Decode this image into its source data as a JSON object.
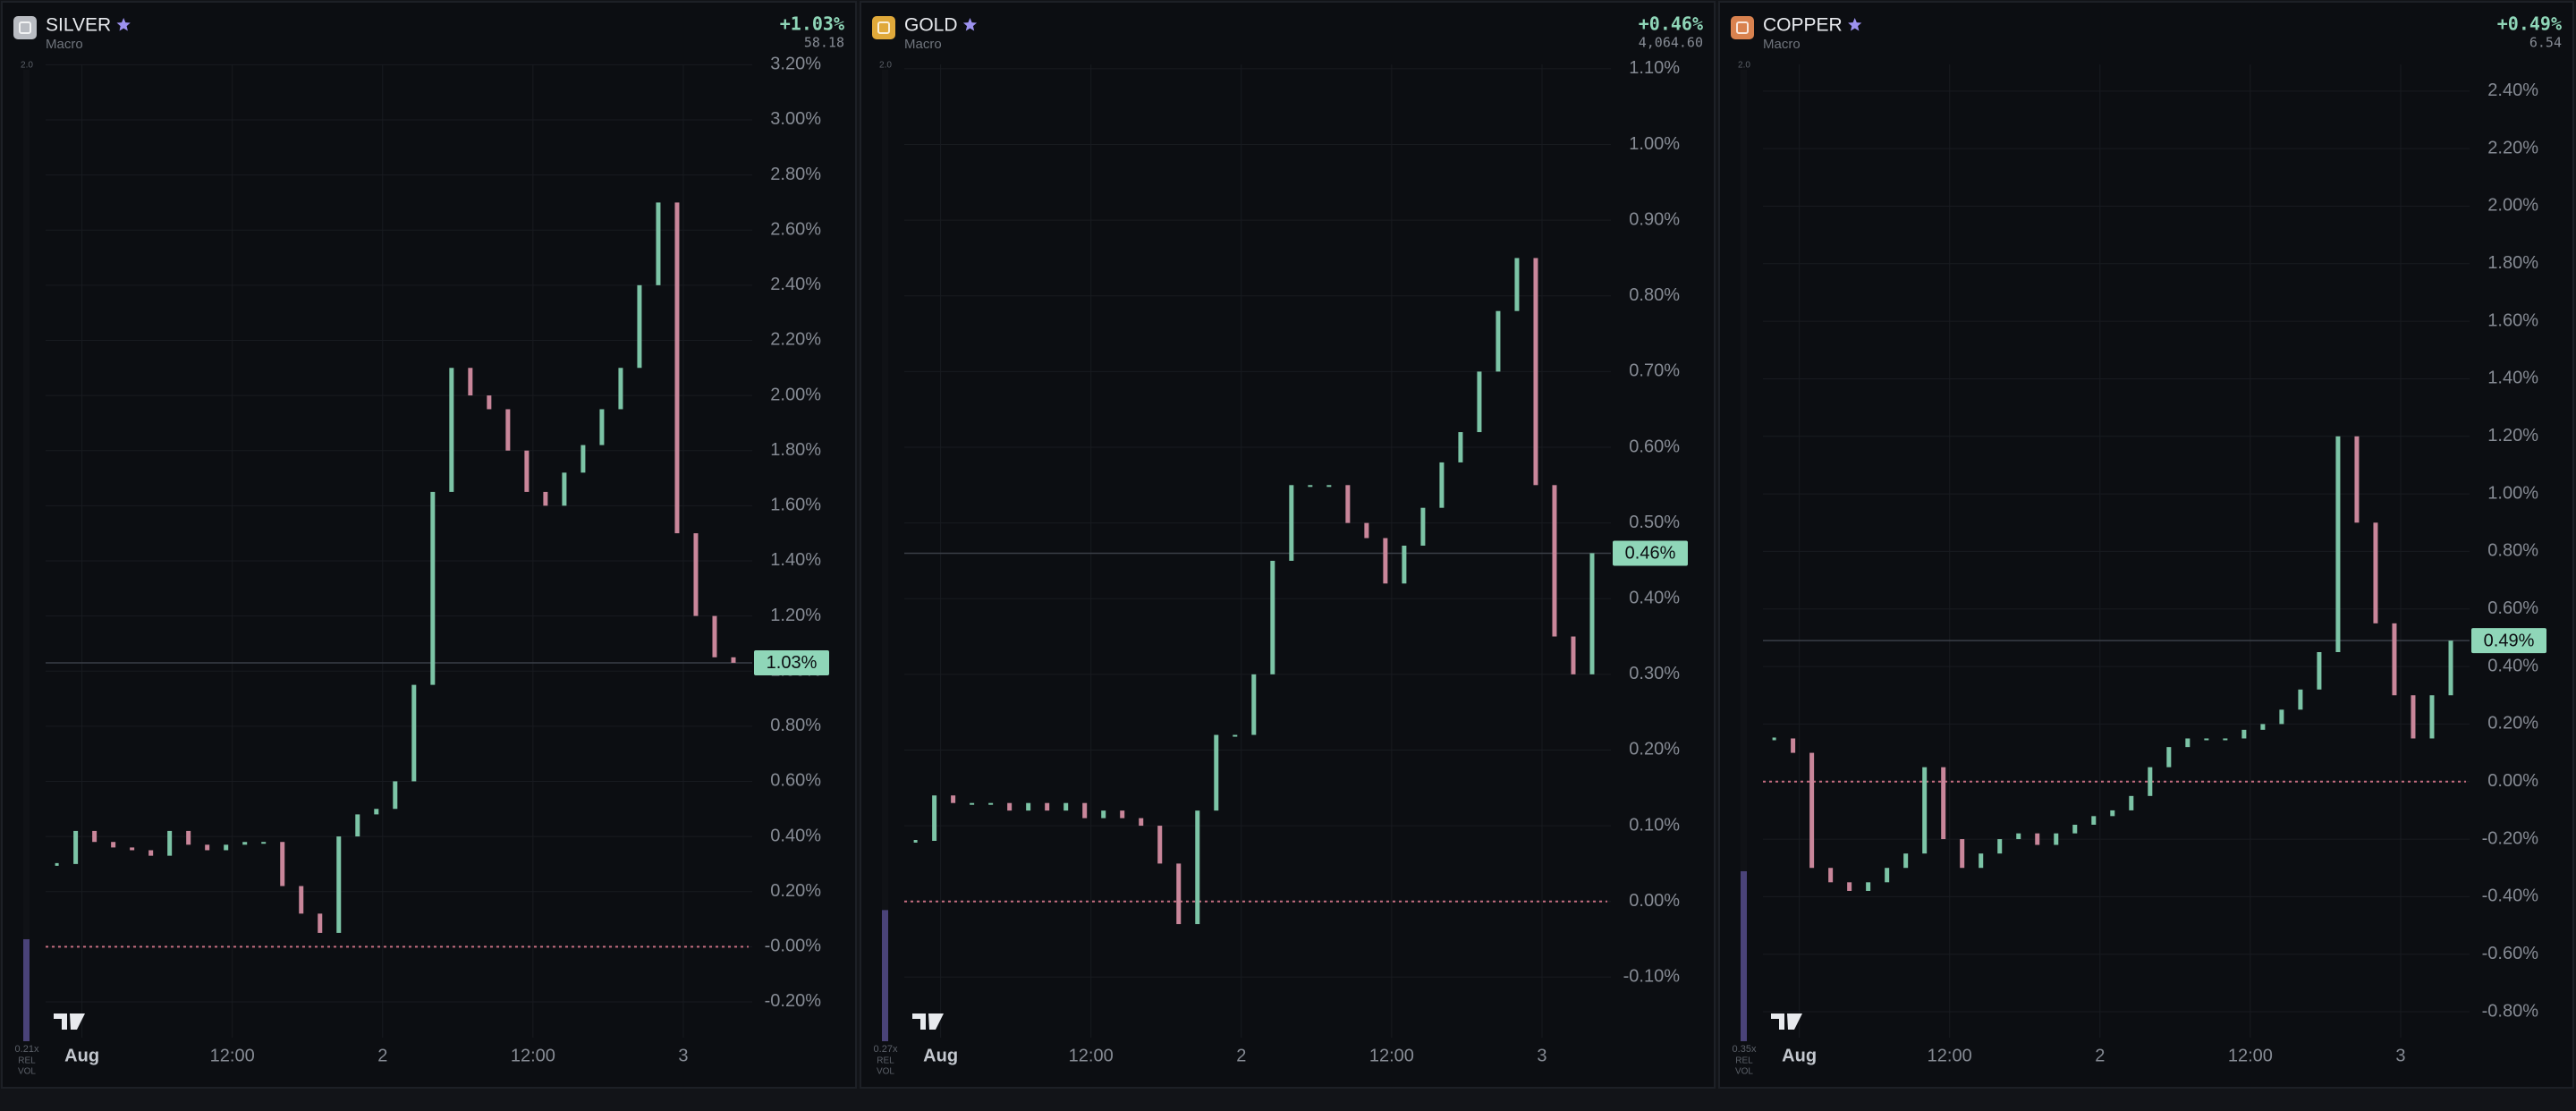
{
  "chart_data": [
    {
      "type": "candlestick",
      "title": "SILVER",
      "subtitle": "Macro",
      "change": "+1.03%",
      "price": "58.18",
      "icon_color": "#b9bcc2",
      "up_color": "#7cc4a6",
      "down_color": "#c9869a",
      "change_color": "#8fd6b8",
      "x": [
        -2,
        -0.5,
        1,
        2.5,
        4,
        5.5,
        7,
        8.5,
        10,
        11.5,
        13,
        14.5,
        16,
        17.5,
        19,
        20.5,
        22,
        23.5,
        25,
        26.5,
        28,
        29.5,
        31,
        32.5,
        34,
        35.5,
        37,
        38.5,
        40,
        41.5,
        43,
        44.5,
        46,
        47.5,
        49,
        50.5,
        52
      ],
      "values": [
        0.3,
        0.42,
        0.38,
        0.36,
        0.35,
        0.33,
        0.42,
        0.37,
        0.35,
        0.37,
        0.38,
        0.38,
        0.22,
        0.12,
        0.05,
        0.4,
        0.48,
        0.5,
        0.6,
        0.95,
        1.65,
        2.1,
        2.0,
        1.95,
        1.8,
        1.65,
        1.6,
        1.72,
        1.82,
        1.95,
        2.1,
        2.4,
        2.7,
        1.5,
        1.2,
        1.05,
        1.03
      ],
      "xlim": [
        -2.9,
        53.5
      ],
      "xticks": [
        {
          "value": 0,
          "label": "Aug"
        },
        {
          "value": 12,
          "label": "12:00"
        },
        {
          "value": 24,
          "label": "2"
        },
        {
          "value": 36,
          "label": "12:00"
        },
        {
          "value": 48,
          "label": "3"
        }
      ],
      "ylim": [
        -0.33,
        3.24
      ],
      "yticks": [
        {
          "value": 3.2,
          "label": "3.20%"
        },
        {
          "value": 3.0,
          "label": "3.00%"
        },
        {
          "value": 2.8,
          "label": "2.80%"
        },
        {
          "value": 2.6,
          "label": "2.60%"
        },
        {
          "value": 2.4,
          "label": "2.40%"
        },
        {
          "value": 2.2,
          "label": "2.20%"
        },
        {
          "value": 2.0,
          "label": "2.00%"
        },
        {
          "value": 1.8,
          "label": "1.80%"
        },
        {
          "value": 1.6,
          "label": "1.60%"
        },
        {
          "value": 1.4,
          "label": "1.40%"
        },
        {
          "value": 1.2,
          "label": "1.20%"
        },
        {
          "value": 1.0,
          "label": "1.00%"
        },
        {
          "value": 0.8,
          "label": "0.80%"
        },
        {
          "value": 0.6,
          "label": "0.60%"
        },
        {
          "value": 0.4,
          "label": "0.40%"
        },
        {
          "value": 0.2,
          "label": "0.20%"
        },
        {
          "value": 0,
          "label": "-0.00%"
        },
        {
          "value": -0.2,
          "label": "-0.20%"
        }
      ],
      "price_line": {
        "value": 1.03,
        "label": "1.03%"
      },
      "rel_vol": {
        "value": 0.21,
        "label": "0.21x"
      },
      "rel_vol_max": {
        "value": 2,
        "label": "2.0"
      },
      "rel_vol_text": [
        "REL",
        "VOL"
      ]
    },
    {
      "type": "candlestick",
      "title": "GOLD",
      "subtitle": "Macro",
      "change": "+0.46%",
      "price": "4,064.60",
      "icon_color": "#e0a93a",
      "up_color": "#7cc4a6",
      "down_color": "#c9869a",
      "change_color": "#8fd6b8",
      "x": [
        -2,
        -0.5,
        1,
        2.5,
        4,
        5.5,
        7,
        8.5,
        10,
        11.5,
        13,
        14.5,
        16,
        17.5,
        19,
        20.5,
        22,
        23.5,
        25,
        26.5,
        28,
        29.5,
        31,
        32.5,
        34,
        35.5,
        37,
        38.5,
        40,
        41.5,
        43,
        44.5,
        46,
        47.5,
        49,
        50.5,
        52
      ],
      "values": [
        0.08,
        0.14,
        0.13,
        0.13,
        0.13,
        0.12,
        0.13,
        0.12,
        0.13,
        0.11,
        0.12,
        0.11,
        0.1,
        0.05,
        -0.03,
        0.12,
        0.22,
        0.22,
        0.3,
        0.45,
        0.55,
        0.55,
        0.55,
        0.5,
        0.48,
        0.42,
        0.47,
        0.52,
        0.58,
        0.62,
        0.7,
        0.78,
        0.85,
        0.55,
        0.35,
        0.3,
        0.46
      ],
      "xlim": [
        -2.9,
        53.5
      ],
      "xticks": [
        {
          "value": 0,
          "label": "Aug"
        },
        {
          "value": 12,
          "label": "12:00"
        },
        {
          "value": 24,
          "label": "2"
        },
        {
          "value": 36,
          "label": "12:00"
        },
        {
          "value": 48,
          "label": "3"
        }
      ],
      "ylim": [
        -0.18,
        1.12
      ],
      "yticks": [
        {
          "value": 1.1,
          "label": "1.10%"
        },
        {
          "value": 1.0,
          "label": "1.00%"
        },
        {
          "value": 0.9,
          "label": "0.90%"
        },
        {
          "value": 0.8,
          "label": "0.80%"
        },
        {
          "value": 0.7,
          "label": "0.70%"
        },
        {
          "value": 0.6,
          "label": "0.60%"
        },
        {
          "value": 0.5,
          "label": "0.50%"
        },
        {
          "value": 0.4,
          "label": "0.40%"
        },
        {
          "value": 0.3,
          "label": "0.30%"
        },
        {
          "value": 0.2,
          "label": "0.20%"
        },
        {
          "value": 0.1,
          "label": "0.10%"
        },
        {
          "value": 0,
          "label": "0.00%"
        },
        {
          "value": -0.1,
          "label": "-0.10%"
        }
      ],
      "price_line": {
        "value": 0.46,
        "label": "0.46%"
      },
      "rel_vol": {
        "value": 0.27,
        "label": "0.27x"
      },
      "rel_vol_max": {
        "value": 2,
        "label": "2.0"
      },
      "rel_vol_text": [
        "REL",
        "VOL"
      ]
    },
    {
      "type": "candlestick",
      "title": "COPPER",
      "subtitle": "Macro",
      "change": "+0.49%",
      "price": "6.54",
      "icon_color": "#d9824f",
      "up_color": "#7cc4a6",
      "down_color": "#c9869a",
      "change_color": "#8fd6b8",
      "x": [
        -2,
        -0.5,
        1,
        2.5,
        4,
        5.5,
        7,
        8.5,
        10,
        11.5,
        13,
        14.5,
        16,
        17.5,
        19,
        20.5,
        22,
        23.5,
        25,
        26.5,
        28,
        29.5,
        31,
        32.5,
        34,
        35.5,
        37,
        38.5,
        40,
        41.5,
        43,
        44.5,
        46,
        47.5,
        49,
        50.5,
        52
      ],
      "values": [
        0.15,
        0.1,
        -0.3,
        -0.35,
        -0.38,
        -0.35,
        -0.3,
        -0.25,
        0.05,
        -0.2,
        -0.3,
        -0.25,
        -0.2,
        -0.18,
        -0.22,
        -0.18,
        -0.15,
        -0.12,
        -0.1,
        -0.05,
        0.05,
        0.12,
        0.15,
        0.15,
        0.15,
        0.18,
        0.2,
        0.25,
        0.32,
        0.45,
        1.2,
        0.9,
        0.55,
        0.3,
        0.15,
        0.3,
        0.49
      ],
      "xlim": [
        -2.9,
        53.5
      ],
      "xticks": [
        {
          "value": 0,
          "label": "Aug"
        },
        {
          "value": 12,
          "label": "12:00"
        },
        {
          "value": 24,
          "label": "2"
        },
        {
          "value": 36,
          "label": "12:00"
        },
        {
          "value": 48,
          "label": "3"
        }
      ],
      "ylim": [
        -0.89,
        2.53
      ],
      "yticks": [
        {
          "value": 2.4,
          "label": "2.40%"
        },
        {
          "value": 2.2,
          "label": "2.20%"
        },
        {
          "value": 2.0,
          "label": "2.00%"
        },
        {
          "value": 1.8,
          "label": "1.80%"
        },
        {
          "value": 1.6,
          "label": "1.60%"
        },
        {
          "value": 1.4,
          "label": "1.40%"
        },
        {
          "value": 1.2,
          "label": "1.20%"
        },
        {
          "value": 1.0,
          "label": "1.00%"
        },
        {
          "value": 0.8,
          "label": "0.80%"
        },
        {
          "value": 0.6,
          "label": "0.60%"
        },
        {
          "value": 0.4,
          "label": "0.40%"
        },
        {
          "value": 0.2,
          "label": "0.20%"
        },
        {
          "value": 0,
          "label": "0.00%"
        },
        {
          "value": -0.2,
          "label": "-0.20%"
        },
        {
          "value": -0.4,
          "label": "-0.40%"
        },
        {
          "value": -0.6,
          "label": "-0.60%"
        },
        {
          "value": -0.8,
          "label": "-0.80%"
        }
      ],
      "price_line": {
        "value": 0.49,
        "label": "0.49%"
      },
      "rel_vol": {
        "value": 0.35,
        "label": "0.35x"
      },
      "rel_vol_max": {
        "value": 2,
        "label": "2.0"
      },
      "rel_vol_text": [
        "REL",
        "VOL"
      ]
    }
  ]
}
